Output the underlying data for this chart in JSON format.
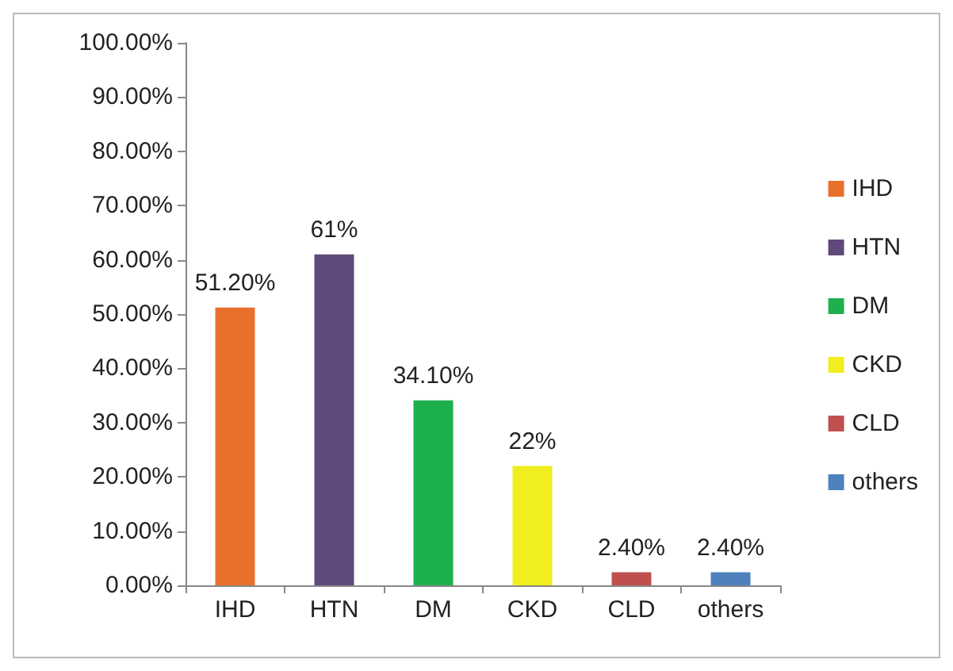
{
  "chart_data": {
    "type": "bar",
    "categories": [
      "IHD",
      "HTN",
      "DM",
      "CKD",
      "CLD",
      "others"
    ],
    "stacked": true,
    "series": [
      {
        "name": "IHD",
        "color": "#e8702a",
        "values": [
          51.2,
          null,
          null,
          null,
          null,
          null
        ],
        "value_labels": [
          "51.20%",
          null,
          null,
          null,
          null,
          null
        ]
      },
      {
        "name": "HTN",
        "color": "#604a7b",
        "values": [
          null,
          61,
          null,
          null,
          null,
          null
        ],
        "value_labels": [
          null,
          "61%",
          null,
          null,
          null,
          null
        ]
      },
      {
        "name": "DM",
        "color": "#1fb04e",
        "values": [
          null,
          null,
          34.1,
          null,
          null,
          null
        ],
        "value_labels": [
          null,
          null,
          "34.10%",
          null,
          null,
          null
        ]
      },
      {
        "name": "CKD",
        "color": "#f0ee1e",
        "values": [
          null,
          null,
          null,
          22,
          null,
          null
        ],
        "value_labels": [
          null,
          null,
          null,
          "22%",
          null,
          null
        ]
      },
      {
        "name": "CLD",
        "color": "#c0504d",
        "values": [
          null,
          null,
          null,
          null,
          2.4,
          null
        ],
        "value_labels": [
          null,
          null,
          null,
          null,
          "2.40%",
          null
        ]
      },
      {
        "name": "others",
        "color": "#4f81bd",
        "values": [
          null,
          null,
          null,
          null,
          null,
          2.4
        ],
        "value_labels": [
          null,
          null,
          null,
          null,
          null,
          "2.40%"
        ]
      }
    ],
    "ylim": [
      0,
      100
    ],
    "yticks": [
      {
        "value": 0,
        "label": "0.00%"
      },
      {
        "value": 10,
        "label": "10.00%"
      },
      {
        "value": 20,
        "label": "20.00%"
      },
      {
        "value": 30,
        "label": "30.00%"
      },
      {
        "value": 40,
        "label": "40.00%"
      },
      {
        "value": 50,
        "label": "50.00%"
      },
      {
        "value": 60,
        "label": "60.00%"
      },
      {
        "value": 70,
        "label": "70.00%"
      },
      {
        "value": 80,
        "label": "80.00%"
      },
      {
        "value": 90,
        "label": "90.00%"
      },
      {
        "value": 100,
        "label": "100.00%"
      }
    ],
    "grid": false,
    "legend": "right"
  }
}
